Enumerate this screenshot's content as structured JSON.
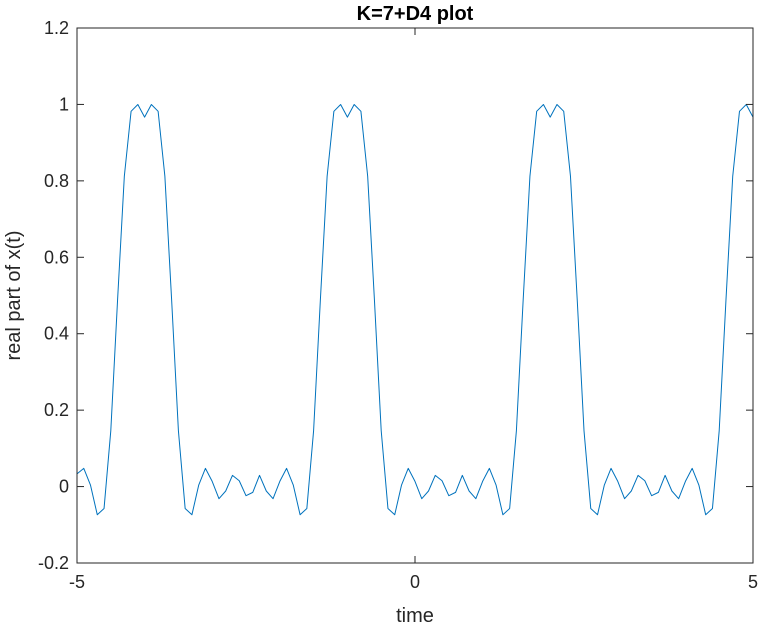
{
  "chart_data": {
    "type": "line",
    "title": "K=7+D4 plot",
    "xlabel": "time",
    "ylabel": "real part of x(t)",
    "xlim": [
      -5,
      5
    ],
    "ylim": [
      -0.2,
      1.2
    ],
    "xticks": [
      -5,
      0,
      5
    ],
    "yticks": [
      -0.2,
      0,
      0.2,
      0.4,
      0.6,
      0.8,
      1,
      1.2
    ],
    "xtick_labels": [
      "-5",
      "0",
      "5"
    ],
    "ytick_labels": [
      "-0.2",
      "0",
      "0.2",
      "0.4",
      "0.6",
      "0.8",
      "1",
      "1.2"
    ],
    "grid": false,
    "series": [
      {
        "color": "#0072BD",
        "x": [
          -5.0,
          -4.9,
          -4.8,
          -4.7,
          -4.6,
          -4.5,
          -4.4,
          -4.3,
          -4.2,
          -4.1,
          -4.0,
          -3.9,
          -3.8,
          -3.7,
          -3.6,
          -3.5,
          -3.4,
          -3.3,
          -3.2,
          -3.1,
          -3.0,
          -2.9,
          -2.8,
          -2.7,
          -2.6,
          -2.5,
          -2.4,
          -2.3,
          -2.2,
          -2.1,
          -2.0,
          -1.9,
          -1.8,
          -1.7,
          -1.6,
          -1.5,
          -1.4,
          -1.3,
          -1.2,
          -1.1,
          -1.0,
          -0.9,
          -0.8,
          -0.7,
          -0.6,
          -0.5,
          -0.4,
          -0.3,
          -0.2,
          -0.1,
          0.0,
          0.1,
          0.2,
          0.3,
          0.4,
          0.5,
          0.6,
          0.7,
          0.8,
          0.9,
          1.0,
          1.1,
          1.2,
          1.3,
          1.4,
          1.5,
          1.6,
          1.7,
          1.8,
          1.9,
          2.0,
          2.1,
          2.2,
          2.3,
          2.4,
          2.5,
          2.6,
          2.7,
          2.8,
          2.9,
          3.0,
          3.1,
          3.2,
          3.3,
          3.4,
          3.5,
          3.6,
          3.7,
          3.8,
          3.9,
          4.0,
          4.1,
          4.2,
          4.3,
          4.4,
          4.5,
          4.6,
          4.7,
          4.8,
          4.9,
          5.0
        ],
        "y": [
          0.0332,
          0.0477,
          0.0035,
          -0.0737,
          -0.0575,
          0.1463,
          0.4879,
          0.8118,
          0.982,
          0.9998,
          0.9667,
          0.9998,
          0.982,
          0.8118,
          0.4879,
          0.1463,
          -0.0575,
          -0.0737,
          0.0035,
          0.0477,
          0.0135,
          -0.0318,
          -0.0116,
          0.0294,
          0.0152,
          -0.0238,
          -0.0152,
          0.0294,
          -0.0116,
          -0.0318,
          0.0135,
          0.0477,
          0.0035,
          -0.0737,
          -0.0575,
          0.1463,
          0.4879,
          0.8118,
          0.982,
          0.9998,
          0.9667,
          0.9998,
          0.982,
          0.8118,
          0.4879,
          0.1463,
          -0.0575,
          -0.0737,
          0.0035,
          0.0477,
          0.0135,
          -0.0318,
          -0.0116,
          0.0294,
          0.0152,
          -0.0238,
          -0.0152,
          0.0294,
          -0.0116,
          -0.0318,
          0.0135,
          0.0477,
          0.0035,
          -0.0737,
          -0.0575,
          0.1463,
          0.4879,
          0.8118,
          0.982,
          0.9998,
          0.9667,
          0.9998,
          0.982,
          0.8118,
          0.4879,
          0.1463,
          -0.0575,
          -0.0737,
          0.0035,
          0.0477,
          0.0135,
          -0.0318,
          -0.0116,
          0.0294,
          0.0152,
          -0.0238,
          -0.0152,
          0.0294,
          -0.0116,
          -0.0318,
          0.0135,
          0.0477,
          0.0035,
          -0.0737,
          -0.0575,
          0.1463,
          0.4879,
          0.8118,
          0.982,
          0.9998,
          0.9667
        ]
      }
    ]
  }
}
